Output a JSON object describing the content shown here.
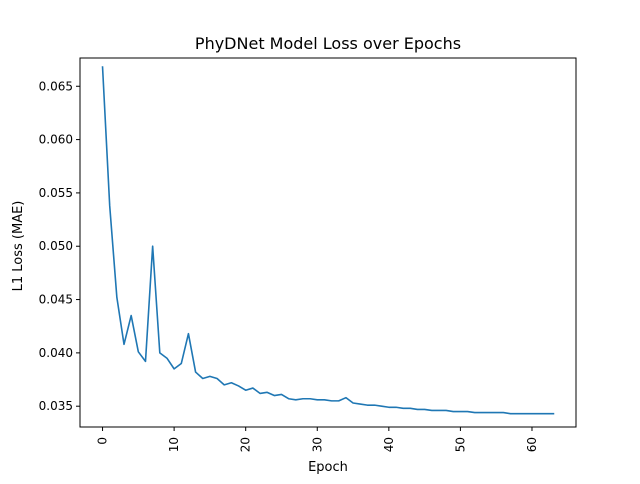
{
  "chart_data": {
    "type": "line",
    "title": "PhyDNet Model Loss over Epochs",
    "xlabel": "Epoch",
    "ylabel": "L1 Loss (MAE)",
    "xlim": [
      -3.15,
      66.15
    ],
    "ylim": [
      0.03305,
      0.06765
    ],
    "x_ticks": [
      0,
      10,
      20,
      30,
      40,
      50,
      60
    ],
    "x_tick_labels": [
      "0",
      "10",
      "20",
      "30",
      "40",
      "50",
      "60"
    ],
    "y_ticks": [
      0.035,
      0.04,
      0.045,
      0.05,
      0.055,
      0.06,
      0.065
    ],
    "y_tick_labels": [
      "0.035",
      "0.040",
      "0.045",
      "0.050",
      "0.055",
      "0.060",
      "0.065"
    ],
    "grid": false,
    "colors": {
      "line": "#1f77b4",
      "axes": "#000000",
      "background": "#ffffff"
    },
    "series": [
      {
        "x": [
          0,
          1,
          2,
          3,
          4,
          5,
          6,
          7,
          8,
          9,
          10,
          11,
          12,
          13,
          14,
          15,
          16,
          17,
          18,
          19,
          20,
          21,
          22,
          23,
          24,
          25,
          26,
          27,
          28,
          29,
          30,
          31,
          32,
          33,
          34,
          35,
          36,
          37,
          38,
          39,
          40,
          41,
          42,
          43,
          44,
          45,
          46,
          47,
          48,
          49,
          50,
          51,
          52,
          53,
          54,
          55,
          56,
          57,
          58,
          59,
          60,
          61,
          62,
          63
        ],
        "y": [
          0.0668,
          0.0538,
          0.0452,
          0.0408,
          0.0435,
          0.0401,
          0.0392,
          0.05,
          0.04,
          0.0395,
          0.0385,
          0.039,
          0.0418,
          0.0382,
          0.0376,
          0.0378,
          0.0376,
          0.037,
          0.0372,
          0.0369,
          0.0365,
          0.0367,
          0.0362,
          0.0363,
          0.036,
          0.0361,
          0.0357,
          0.0356,
          0.0357,
          0.0357,
          0.0356,
          0.0356,
          0.0355,
          0.0355,
          0.0358,
          0.0353,
          0.0352,
          0.0351,
          0.0351,
          0.035,
          0.0349,
          0.0349,
          0.0348,
          0.0348,
          0.0347,
          0.0347,
          0.0346,
          0.0346,
          0.0346,
          0.0345,
          0.0345,
          0.0345,
          0.0344,
          0.0344,
          0.0344,
          0.0344,
          0.0344,
          0.0343,
          0.0343,
          0.0343,
          0.0343,
          0.0343,
          0.0343,
          0.0343
        ]
      }
    ]
  }
}
